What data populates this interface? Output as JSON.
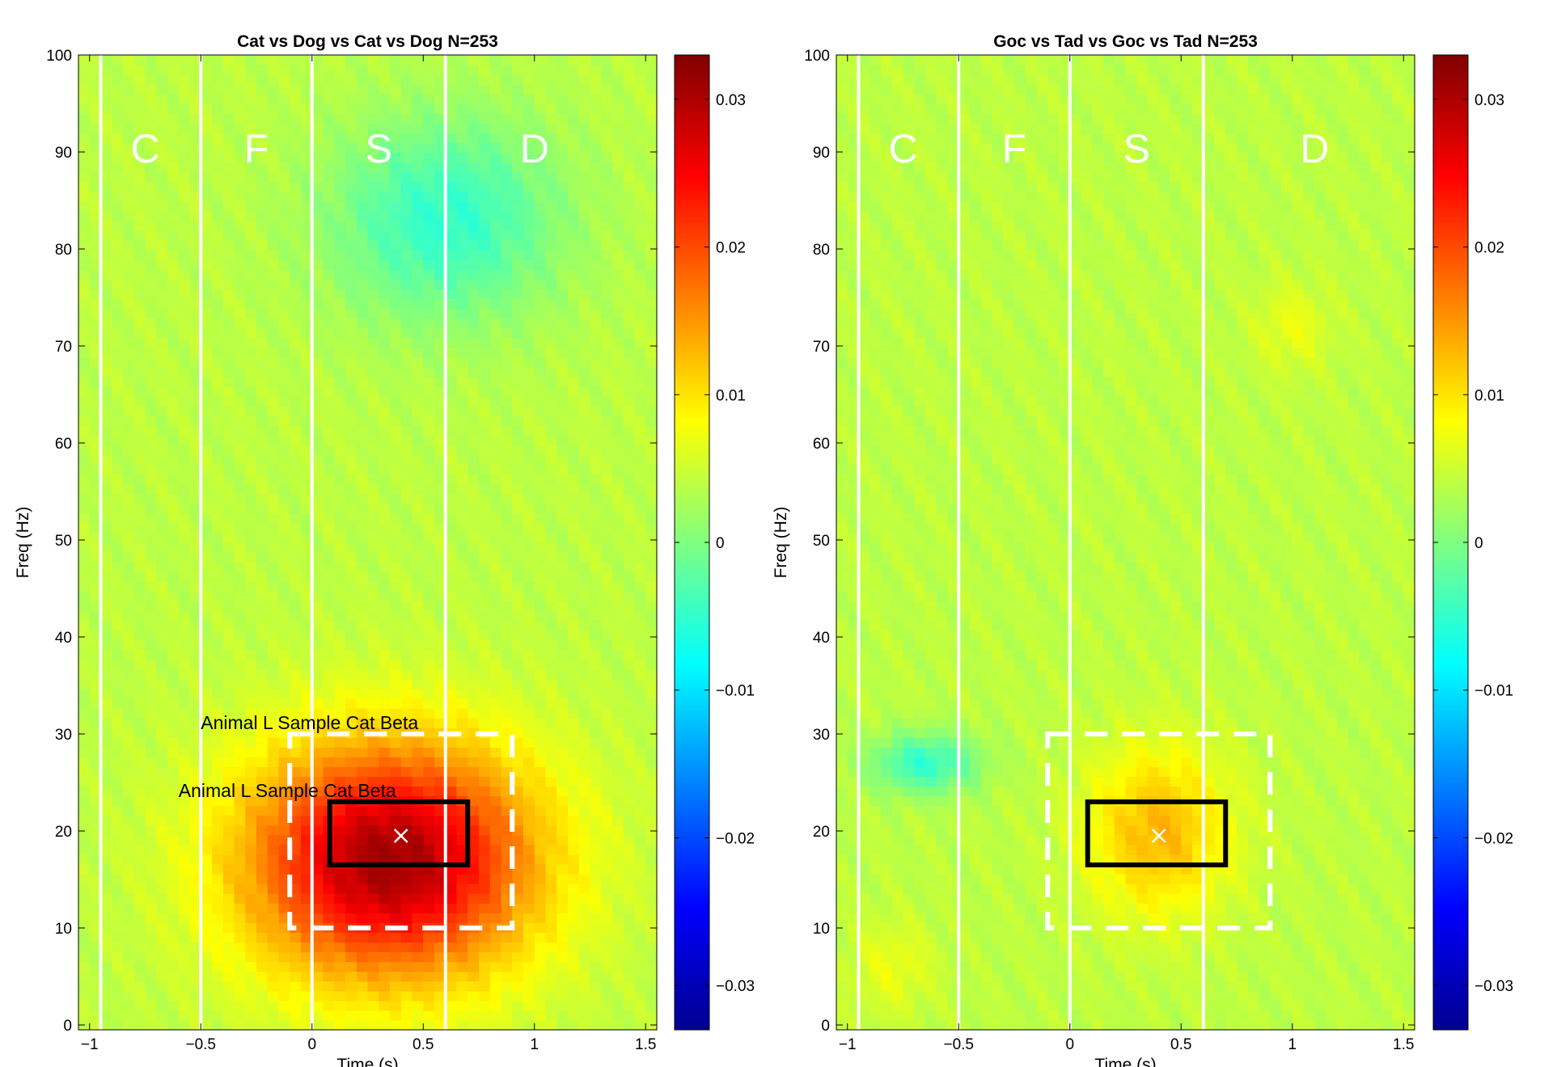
{
  "chart_data": [
    {
      "type": "heatmap",
      "title": "Cat vs Dog vs Cat vs Dog N=253",
      "xlabel": "Time (s)",
      "ylabel": "Freq (Hz)",
      "xlim": [
        -1.05,
        1.55
      ],
      "ylim": [
        -0.5,
        100
      ],
      "xticks": [
        -1,
        -0.5,
        0,
        0.5,
        1,
        1.5
      ],
      "xticklabels": [
        "−1",
        "−0.5",
        "0",
        "0.5",
        "1",
        "1.5"
      ],
      "yticks": [
        0,
        10,
        20,
        30,
        40,
        50,
        60,
        70,
        80,
        90,
        100
      ],
      "yticklabels": [
        "0",
        "10",
        "20",
        "30",
        "40",
        "50",
        "60",
        "70",
        "80",
        "90",
        "100"
      ],
      "colorbar": {
        "range": [
          -0.033,
          0.033
        ],
        "ticks": [
          0.03,
          0.02,
          0.01,
          0,
          -0.01,
          -0.02,
          -0.03
        ],
        "ticklabels": [
          "0.03",
          "0.02",
          "0.01",
          "0",
          "−0.01",
          "−0.02",
          "−0.03"
        ],
        "colormap": "jet"
      },
      "background_value": 0.004,
      "blobs": [
        {
          "region": "positive cluster",
          "x": [
            -0.3,
            1.55
          ],
          "y": [
            0,
            35
          ],
          "center": [
            0.35,
            17
          ],
          "peak": 0.031
        },
        {
          "region": "negative high-gamma cluster",
          "x": [
            0.08,
            1.55
          ],
          "y": [
            70,
            100
          ],
          "center": [
            0.6,
            83
          ],
          "peak": -0.005
        }
      ],
      "epoch_lines": [
        -0.95,
        -0.5,
        0,
        0.6
      ],
      "epoch_labels": [
        {
          "text": "C",
          "x": -0.75,
          "y": 90
        },
        {
          "text": "F",
          "x": -0.25,
          "y": 90
        },
        {
          "text": "S",
          "x": 0.3,
          "y": 90
        },
        {
          "text": "D",
          "x": 1.0,
          "y": 90
        }
      ],
      "dashed_roi": {
        "x": [
          -0.1,
          0.9
        ],
        "y": [
          10,
          30
        ]
      },
      "solid_roi": {
        "x": [
          0.08,
          0.7
        ],
        "y": [
          16.5,
          23
        ]
      },
      "peak_marker": {
        "x": 0.4,
        "y": 19.5
      },
      "annotations": [
        {
          "text": "Animal L Sample Cat Beta",
          "x": -0.5,
          "y": 30.5
        },
        {
          "text": "Animal L Sample Cat Beta",
          "x": -0.6,
          "y": 23.5
        }
      ]
    },
    {
      "type": "heatmap",
      "title": "Goc vs Tad vs Goc vs Tad N=253",
      "xlabel": "Time (s)",
      "ylabel": "Freq (Hz)",
      "xlim": [
        -1.05,
        1.55
      ],
      "ylim": [
        -0.5,
        100
      ],
      "xticks": [
        -1,
        -0.5,
        0,
        0.5,
        1,
        1.5
      ],
      "xticklabels": [
        "−1",
        "−0.5",
        "0",
        "0.5",
        "1",
        "1.5"
      ],
      "yticks": [
        0,
        10,
        20,
        30,
        40,
        50,
        60,
        70,
        80,
        90,
        100
      ],
      "yticklabels": [
        "0",
        "10",
        "20",
        "30",
        "40",
        "50",
        "60",
        "70",
        "80",
        "90",
        "100"
      ],
      "colorbar": {
        "range": [
          -0.033,
          0.033
        ],
        "ticks": [
          0.03,
          0.02,
          0.01,
          0,
          -0.01,
          -0.02,
          -0.03
        ],
        "ticklabels": [
          "0.03",
          "0.02",
          "0.01",
          "0",
          "−0.01",
          "−0.02",
          "−0.03"
        ],
        "colormap": "jet"
      },
      "background_value": 0.004,
      "blobs": [
        {
          "region": "positive cluster",
          "x": [
            0.08,
            1.0
          ],
          "y": [
            8,
            33
          ],
          "center": [
            0.4,
            20
          ],
          "peak": 0.013
        },
        {
          "region": "negative cluster",
          "x": [
            -1.0,
            -0.3
          ],
          "y": [
            22,
            31
          ],
          "center": [
            -0.65,
            27
          ],
          "peak": -0.005
        },
        {
          "region": "late gamma cluster",
          "x": [
            0.75,
            1.25
          ],
          "y": [
            67,
            80
          ],
          "center": [
            1.0,
            72
          ],
          "peak": 0.007
        },
        {
          "region": "low-frequency cluster",
          "x": [
            -1.05,
            -0.5
          ],
          "y": [
            0,
            14
          ],
          "center": [
            -0.8,
            6
          ],
          "peak": 0.007
        }
      ],
      "epoch_lines": [
        -0.95,
        -0.5,
        0,
        0.6
      ],
      "epoch_labels": [
        {
          "text": "C",
          "x": -0.75,
          "y": 90
        },
        {
          "text": "F",
          "x": -0.25,
          "y": 90
        },
        {
          "text": "S",
          "x": 0.3,
          "y": 90
        },
        {
          "text": "D",
          "x": 1.1,
          "y": 90
        }
      ],
      "dashed_roi": {
        "x": [
          -0.1,
          0.9
        ],
        "y": [
          10,
          30
        ]
      },
      "solid_roi": {
        "x": [
          0.08,
          0.7
        ],
        "y": [
          16.5,
          23
        ]
      },
      "peak_marker": {
        "x": 0.4,
        "y": 19.5
      },
      "annotations": []
    }
  ]
}
